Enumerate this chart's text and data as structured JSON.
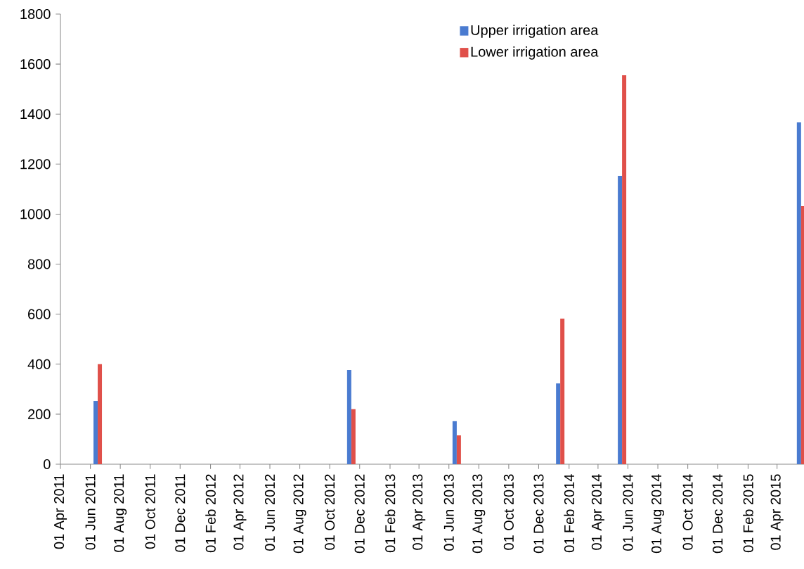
{
  "chart_data": {
    "type": "bar",
    "x": [
      "2011-06-16",
      "2012-11-14",
      "2013-06-17",
      "2014-01-14",
      "2014-05-20",
      "2015-05-20"
    ],
    "series": [
      {
        "name": "Upper irrigation area",
        "color": "#4a7bd0",
        "values": [
          253,
          377,
          172,
          323,
          1153,
          1367
        ]
      },
      {
        "name": "Lower irrigation area",
        "color": "#e0504a",
        "values": [
          400,
          220,
          115,
          582,
          1555,
          1032
        ]
      }
    ],
    "xlim": [
      "2011-04-01",
      "2015-05-26"
    ],
    "xticks": [
      {
        "value": "2011-04-01",
        "label": "01 Apr 2011"
      },
      {
        "value": "2011-06-01",
        "label": "01 Jun 2011"
      },
      {
        "value": "2011-08-01",
        "label": "01 Aug 2011"
      },
      {
        "value": "2011-10-01",
        "label": "01 Oct 2011"
      },
      {
        "value": "2011-12-01",
        "label": "01 Dec 2011"
      },
      {
        "value": "2012-02-01",
        "label": "01 Feb 2012"
      },
      {
        "value": "2012-04-01",
        "label": "01 Apr 2012"
      },
      {
        "value": "2012-06-01",
        "label": "01 Jun 2012"
      },
      {
        "value": "2012-08-01",
        "label": "01 Aug 2012"
      },
      {
        "value": "2012-10-01",
        "label": "01 Oct 2012"
      },
      {
        "value": "2012-12-01",
        "label": "01 Dec 2012"
      },
      {
        "value": "2013-02-01",
        "label": "01 Feb 2013"
      },
      {
        "value": "2013-04-01",
        "label": "01 Apr 2013"
      },
      {
        "value": "2013-06-01",
        "label": "01 Jun 2013"
      },
      {
        "value": "2013-08-01",
        "label": "01 Aug 2013"
      },
      {
        "value": "2013-10-01",
        "label": "01 Oct 2013"
      },
      {
        "value": "2013-12-01",
        "label": "01 Dec 2013"
      },
      {
        "value": "2014-02-01",
        "label": "01 Feb 2014"
      },
      {
        "value": "2014-04-01",
        "label": "01 Apr 2014"
      },
      {
        "value": "2014-06-01",
        "label": "01 Jun 2014"
      },
      {
        "value": "2014-08-01",
        "label": "01 Aug 2014"
      },
      {
        "value": "2014-10-01",
        "label": "01 Oct 2014"
      },
      {
        "value": "2014-12-01",
        "label": "01 Dec 2014"
      },
      {
        "value": "2015-02-01",
        "label": "01 Feb 2015"
      },
      {
        "value": "2015-04-01",
        "label": "01 Apr 2015"
      }
    ],
    "ylim": [
      0,
      1800
    ],
    "yticks": [
      0,
      200,
      400,
      600,
      800,
      1000,
      1200,
      1400,
      1600,
      1800
    ],
    "legend": "top right"
  }
}
